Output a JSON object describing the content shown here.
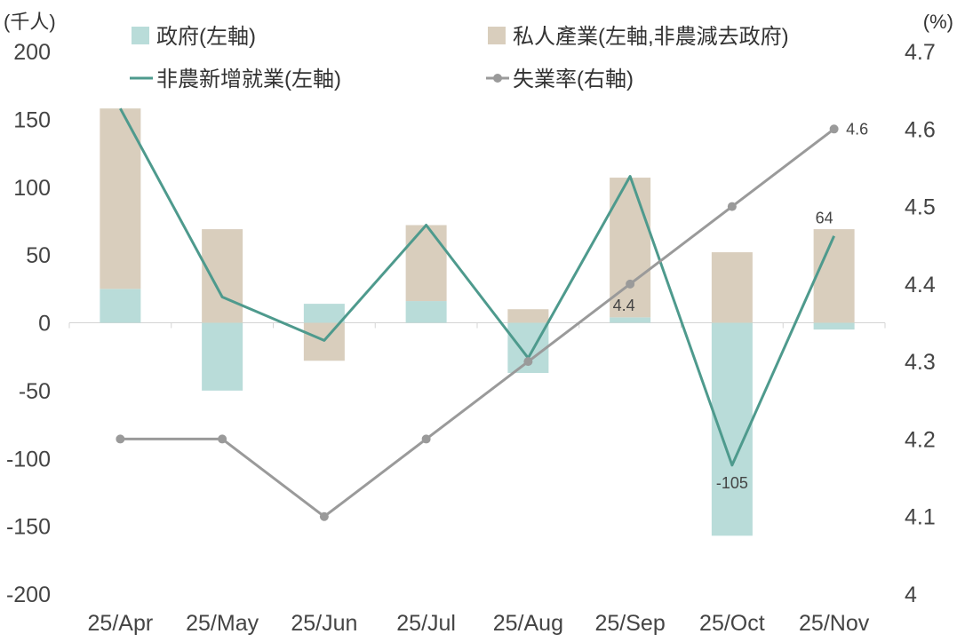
{
  "chart_data": {
    "type": "bar",
    "categories": [
      "25/Apr",
      "25/May",
      "25/Jun",
      "25/Jul",
      "25/Aug",
      "25/Sep",
      "25/Oct",
      "25/Nov"
    ],
    "left_axis": {
      "unit_label": "(千人)",
      "ylim": [
        -200,
        200
      ],
      "ticks": [
        "200",
        "150",
        "100",
        "50",
        "0",
        "-50",
        "-100",
        "-150",
        "-200"
      ]
    },
    "right_axis": {
      "unit_label": "(%)",
      "ylim": [
        4.0,
        4.7
      ],
      "ticks": [
        "4.7",
        "4.6",
        "4.5",
        "4.4",
        "4.3",
        "4.2",
        "4.1",
        "4"
      ]
    },
    "series": [
      {
        "name": "政府(左軸)",
        "type": "stacked-bar",
        "axis": "left",
        "color": "#B9DCD9",
        "values": [
          25,
          -50,
          14,
          16,
          -37,
          4,
          -157,
          -5
        ]
      },
      {
        "name": "私人產業(左軸,非農減去政府)",
        "type": "stacked-bar",
        "axis": "left",
        "color": "#D9CEBD",
        "values": [
          133,
          69,
          -28,
          56,
          10,
          103,
          52,
          69
        ]
      },
      {
        "name": "非農新增就業(左軸)",
        "type": "line",
        "axis": "left",
        "color": "#4E9A8D",
        "values": [
          158,
          19,
          -13,
          72,
          -26,
          108,
          -105,
          64
        ]
      },
      {
        "name": "失業率(右軸)",
        "type": "line-markers",
        "axis": "right",
        "color": "#9A9A9A",
        "values": [
          4.2,
          4.2,
          4.1,
          4.2,
          4.3,
          4.4,
          4.5,
          4.6
        ]
      }
    ],
    "data_labels": [
      {
        "series": "非農新增就業(左軸)",
        "category": "25/Oct",
        "text": "-105"
      },
      {
        "series": "非農新增就業(左軸)",
        "category": "25/Nov",
        "text": "64"
      },
      {
        "series": "失業率(右軸)",
        "category": "25/Sep",
        "text": "4.4"
      },
      {
        "series": "失業率(右軸)",
        "category": "25/Nov",
        "text": "4.6"
      }
    ],
    "legend": {
      "placement": "top",
      "items": [
        {
          "label": "政府(左軸)",
          "kind": "box",
          "color": "#B9DCD9"
        },
        {
          "label": "私人產業(左軸,非農減去政府)",
          "kind": "box",
          "color": "#D9CEBD"
        },
        {
          "label": "非農新增就業(左軸)",
          "kind": "line",
          "color": "#4E9A8D"
        },
        {
          "label": "失業率(右軸)",
          "kind": "line-dot",
          "color": "#9A9A9A"
        }
      ]
    },
    "grid": false
  }
}
